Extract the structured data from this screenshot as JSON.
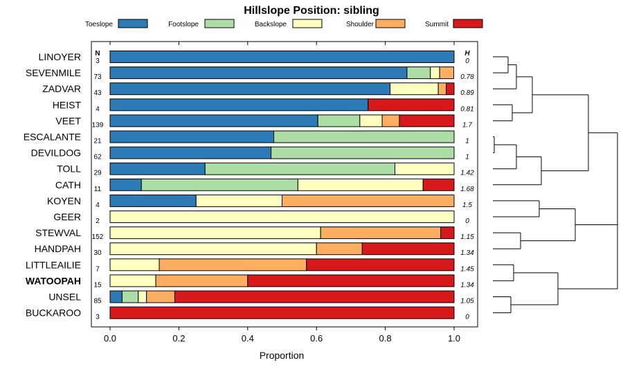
{
  "chart_data": {
    "type": "bar",
    "orientation": "horizontal",
    "stacked": true,
    "title": "Hillslope Position: sibling",
    "xlabel": "Proportion",
    "ylabel": "",
    "xlim": [
      0,
      1
    ],
    "x_ticks": [
      "0.0",
      "0.2",
      "0.4",
      "0.6",
      "0.8",
      "1.0"
    ],
    "n_header": "N",
    "h_header": "H",
    "legend_position": "top",
    "legend": [
      {
        "name": "Toeslope",
        "color": "#2c7bb6"
      },
      {
        "name": "Footslope",
        "color": "#abdda4"
      },
      {
        "name": "Backslope",
        "color": "#ffffbf"
      },
      {
        "name": "Shoulder",
        "color": "#fdae61"
      },
      {
        "name": "Summit",
        "color": "#d7191c"
      }
    ],
    "rows": [
      {
        "label": "LINOYER",
        "n": "3",
        "h": "0",
        "bold": false,
        "values": [
          1.0,
          0,
          0,
          0,
          0
        ]
      },
      {
        "label": "SEVENMILE",
        "n": "73",
        "h": "0.78",
        "bold": false,
        "values": [
          0.863,
          0.068,
          0.027,
          0.041,
          0
        ]
      },
      {
        "label": "ZADVAR",
        "n": "43",
        "h": "0.89",
        "bold": false,
        "values": [
          0.814,
          0,
          0.14,
          0.023,
          0.023
        ]
      },
      {
        "label": "HEIST",
        "n": "4",
        "h": "0.81",
        "bold": false,
        "values": [
          0.75,
          0,
          0,
          0,
          0.25
        ]
      },
      {
        "label": "VEET",
        "n": "139",
        "h": "1.7",
        "bold": false,
        "values": [
          0.604,
          0.122,
          0.065,
          0.05,
          0.159
        ]
      },
      {
        "label": "ESCALANTE",
        "n": "21",
        "h": "1",
        "bold": false,
        "values": [
          0.476,
          0.524,
          0,
          0,
          0
        ]
      },
      {
        "label": "DEVILDOG",
        "n": "62",
        "h": "1",
        "bold": false,
        "values": [
          0.468,
          0.532,
          0,
          0,
          0
        ]
      },
      {
        "label": "TOLL",
        "n": "29",
        "h": "1.42",
        "bold": false,
        "values": [
          0.276,
          0.552,
          0.172,
          0,
          0
        ]
      },
      {
        "label": "CATH",
        "n": "11",
        "h": "1.68",
        "bold": false,
        "values": [
          0.091,
          0.455,
          0.364,
          0,
          0.09
        ]
      },
      {
        "label": "KOYEN",
        "n": "4",
        "h": "1.5",
        "bold": false,
        "values": [
          0.25,
          0,
          0.25,
          0.5,
          0
        ]
      },
      {
        "label": "GEER",
        "n": "2",
        "h": "0",
        "bold": false,
        "values": [
          0,
          0,
          1.0,
          0,
          0
        ]
      },
      {
        "label": "STEWVAL",
        "n": "152",
        "h": "1.15",
        "bold": false,
        "values": [
          0,
          0,
          0.612,
          0.349,
          0.039
        ]
      },
      {
        "label": "HANDPAH",
        "n": "30",
        "h": "1.34",
        "bold": false,
        "values": [
          0,
          0,
          0.6,
          0.133,
          0.267
        ]
      },
      {
        "label": "LITTLEAILIE",
        "n": "7",
        "h": "1.45",
        "bold": false,
        "values": [
          0,
          0,
          0.143,
          0.428,
          0.429
        ]
      },
      {
        "label": "WATOOPAH",
        "n": "15",
        "h": "1.34",
        "bold": true,
        "values": [
          0,
          0,
          0.133,
          0.267,
          0.6
        ]
      },
      {
        "label": "UNSEL",
        "n": "85",
        "h": "1.05",
        "bold": false,
        "values": [
          0.035,
          0.047,
          0.024,
          0.082,
          0.812
        ]
      },
      {
        "label": "BUCKAROO",
        "n": "3",
        "h": "0",
        "bold": false,
        "values": [
          0,
          0,
          0,
          0,
          1.0
        ]
      }
    ]
  }
}
